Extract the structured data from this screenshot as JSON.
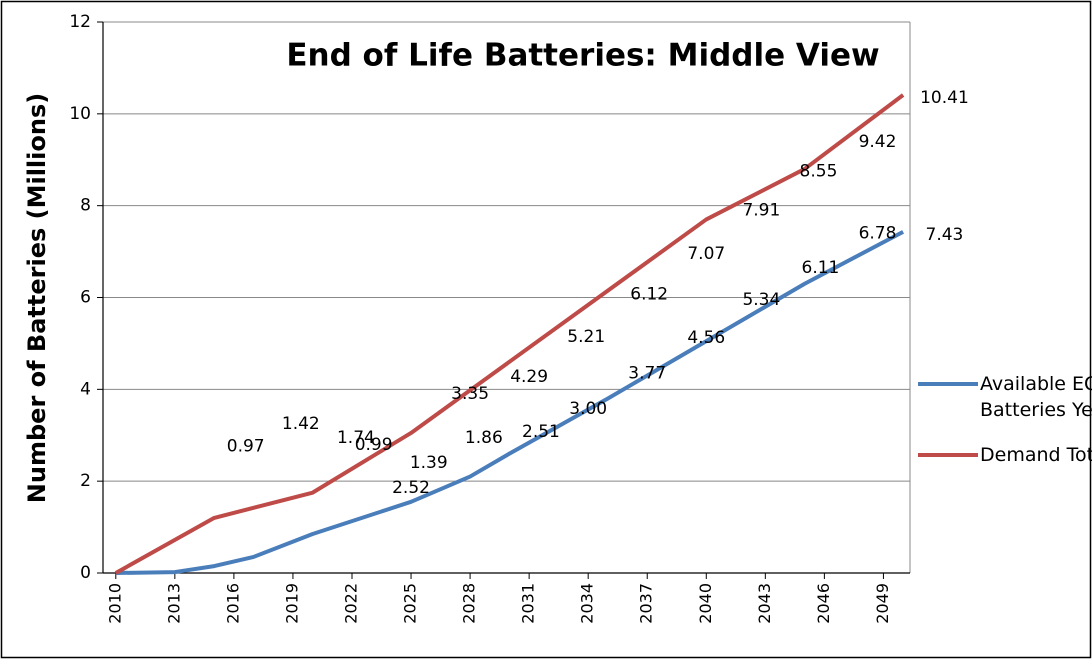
{
  "chart_data": {
    "type": "line",
    "title": "End of Life Batteries: Middle View",
    "y_label": "Number of Batteries (Millions)",
    "xlim": [
      2009.35,
      2050.35
    ],
    "xticks": [
      2010,
      2013,
      2016,
      2019,
      2022,
      2025,
      2028,
      2031,
      2034,
      2037,
      2040,
      2043,
      2046,
      2049
    ],
    "ylim": [
      0,
      12
    ],
    "yticks": [
      0,
      2,
      4,
      6,
      8,
      10,
      12
    ],
    "grid": true,
    "legend": "right",
    "series": [
      {
        "name": "Available EOL Batteries Year",
        "color": "#4a7ebb",
        "x": [
          2010,
          2013,
          2015,
          2017,
          2020,
          2025,
          2028,
          2030,
          2035,
          2040,
          2045,
          2050
        ],
        "values": [
          0,
          0.02,
          0.15,
          0.35,
          0.85,
          1.55,
          2.1,
          2.6,
          3.8,
          5.05,
          6.3,
          7.43
        ]
      },
      {
        "name": "Demand Total",
        "color": "#be4b48",
        "x": [
          2010,
          2015,
          2020,
          2025,
          2040,
          2045,
          2050
        ],
        "values": [
          0,
          1.2,
          1.75,
          3.05,
          7.7,
          8.8,
          10.41
        ]
      }
    ],
    "annotations": [
      {
        "text": "0.97",
        "x": 2016.6,
        "y": 2.75
      },
      {
        "text": "1.42",
        "x": 2019.4,
        "y": 3.25
      },
      {
        "text": "1.74",
        "x": 2022.2,
        "y": 2.94
      },
      {
        "text": "2.52",
        "x": 2025.0,
        "y": 1.85
      },
      {
        "text": "3.35",
        "x": 2028.0,
        "y": 3.9
      },
      {
        "text": "4.29",
        "x": 2031.0,
        "y": 4.27
      },
      {
        "text": "5.21",
        "x": 2033.9,
        "y": 5.14
      },
      {
        "text": "6.12",
        "x": 2037.1,
        "y": 6.06
      },
      {
        "text": "7.07",
        "x": 2040.0,
        "y": 6.95
      },
      {
        "text": "7.91",
        "x": 2042.8,
        "y": 7.89
      },
      {
        "text": "8.55",
        "x": 2045.7,
        "y": 8.74
      },
      {
        "text": "9.42",
        "x": 2048.7,
        "y": 9.39
      },
      {
        "text": "10.41",
        "x": 2052.1,
        "y": 10.35
      },
      {
        "text": "0.99",
        "x": 2023.1,
        "y": 2.79
      },
      {
        "text": "1.39",
        "x": 2025.9,
        "y": 2.4
      },
      {
        "text": "1.86",
        "x": 2028.7,
        "y": 2.94
      },
      {
        "text": "2.51",
        "x": 2031.6,
        "y": 3.07
      },
      {
        "text": "3.00",
        "x": 2034.0,
        "y": 3.57
      },
      {
        "text": "3.77",
        "x": 2037.0,
        "y": 4.34
      },
      {
        "text": "4.56",
        "x": 2040.0,
        "y": 5.12
      },
      {
        "text": "5.34",
        "x": 2042.8,
        "y": 5.95
      },
      {
        "text": "6.11",
        "x": 2045.8,
        "y": 6.64
      },
      {
        "text": "6.78",
        "x": 2048.7,
        "y": 7.39
      },
      {
        "text": "7.43",
        "x": 2052.1,
        "y": 7.36
      }
    ]
  }
}
